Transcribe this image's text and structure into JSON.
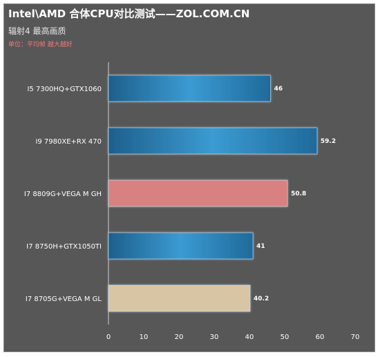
{
  "title": "Intel\\AMD 合体CPU对比测试——ZOL.COM.CN",
  "subtitle": "辐射4 最高画质",
  "unit_note": "单位：平均帧  越大越好",
  "colors": {
    "background": "#575757",
    "blue_bar": "#2e86bd",
    "pink_bar": "#d98080",
    "tan_bar": "#d8c5a4"
  },
  "chart_data": {
    "type": "bar",
    "orientation": "horizontal",
    "title": "Intel\\AMD 合体CPU对比测试——ZOL.COM.CN",
    "subtitle": "辐射4 最高画质",
    "categories": [
      "I5 7300HQ+GTX1060",
      "I9 7980XE+RX 470",
      "I7 8809G+VEGA M GH",
      "I7 8750H+GTX1050TI",
      "I7 8705G+VEGA M GL"
    ],
    "values": [
      46,
      59.2,
      50.8,
      41,
      40.2
    ],
    "value_labels": [
      "46",
      "59.2",
      "50.8",
      "41",
      "40.2"
    ],
    "bar_colors": [
      "#2e86bd",
      "#2e86bd",
      "#d98080",
      "#2e86bd",
      "#d8c5a4"
    ],
    "xlim": [
      0,
      70
    ],
    "xticks": [
      0,
      10,
      20,
      30,
      40,
      50,
      60,
      70
    ],
    "xtick_labels": [
      "0",
      "10",
      "20",
      "30",
      "40",
      "50",
      "60",
      "70"
    ],
    "grid": false,
    "legend": "none"
  }
}
